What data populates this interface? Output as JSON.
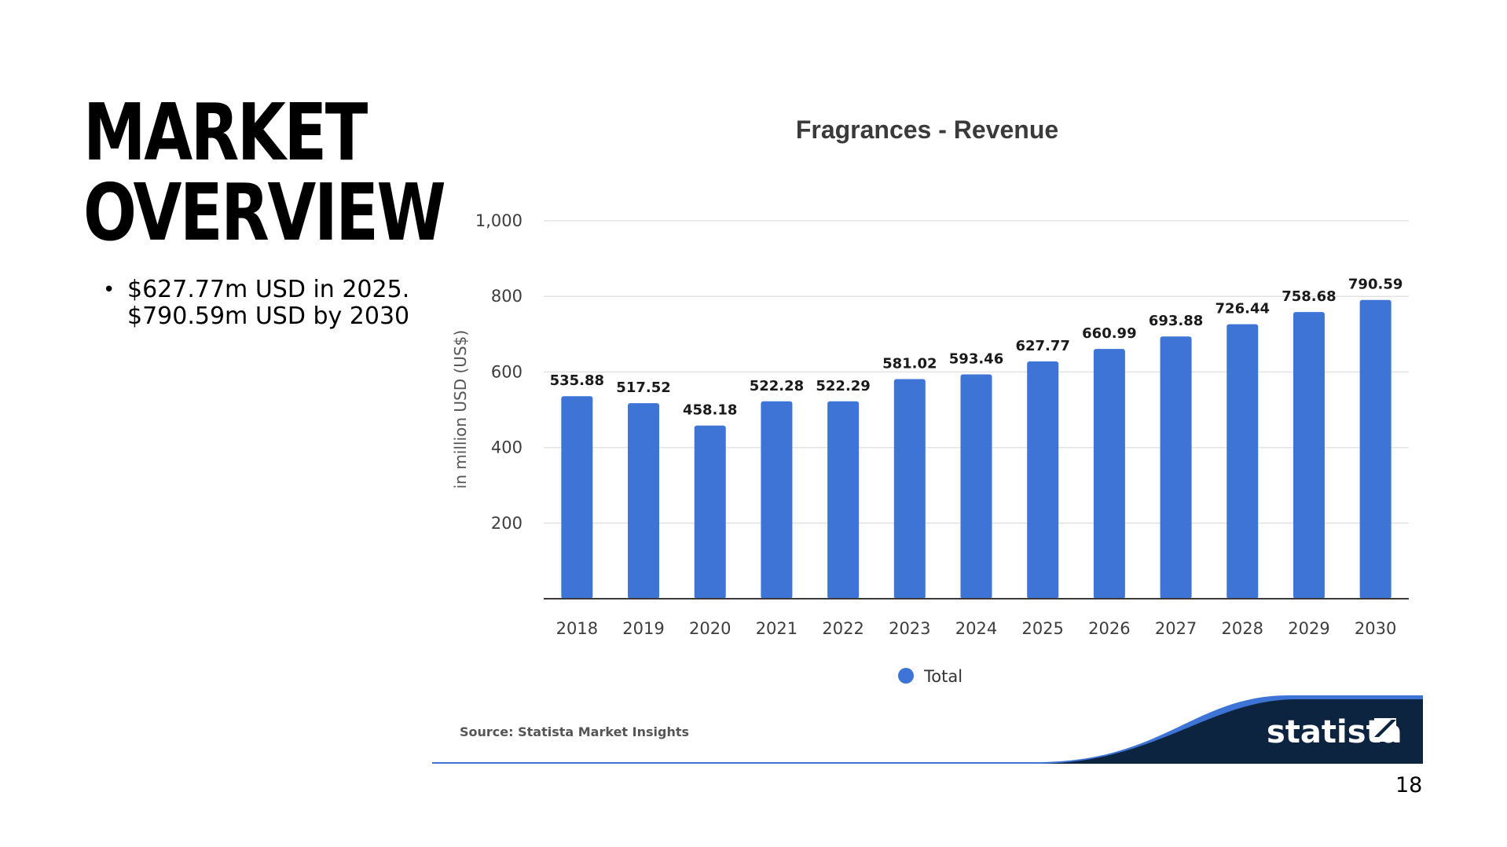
{
  "slide": {
    "title_line1": "MARKET",
    "title_line2": "OVERVIEW",
    "bullet_line1": "$627.77m USD in 2025.",
    "bullet_line2": "$790.59m USD by 2030",
    "page_number": "18"
  },
  "colors": {
    "bar": "#3d74d6",
    "grid": "#e3e3e3",
    "axis": "#3a3a3a",
    "logo_dark": "#0d2440",
    "logo_blue": "#3d74d6"
  },
  "chart_data": {
    "type": "bar",
    "title": "Fragrances - Revenue",
    "xlabel": "",
    "ylabel": "in million USD (US$)",
    "ylim": [
      0,
      1000
    ],
    "yticks": [
      200,
      400,
      600,
      800,
      1000
    ],
    "ytick_labels": [
      "200",
      "400",
      "600",
      "800",
      "1,000"
    ],
    "grid": true,
    "legend_position": "bottom-center",
    "categories": [
      "2018",
      "2019",
      "2020",
      "2021",
      "2022",
      "2023",
      "2024",
      "2025",
      "2026",
      "2027",
      "2028",
      "2029",
      "2030"
    ],
    "series": [
      {
        "name": "Total",
        "values": [
          535.88,
          517.52,
          458.18,
          522.28,
          522.29,
          581.02,
          593.46,
          627.77,
          660.99,
          693.88,
          726.44,
          758.68,
          790.59
        ],
        "value_labels": [
          "535.88",
          "517.52",
          "458.18",
          "522.28",
          "522.29",
          "581.02",
          "593.46",
          "627.77",
          "660.99",
          "693.88",
          "726.44",
          "758.68",
          "790.59"
        ]
      }
    ],
    "source": "Source: Statista Market Insights",
    "logo_text": "statista"
  }
}
